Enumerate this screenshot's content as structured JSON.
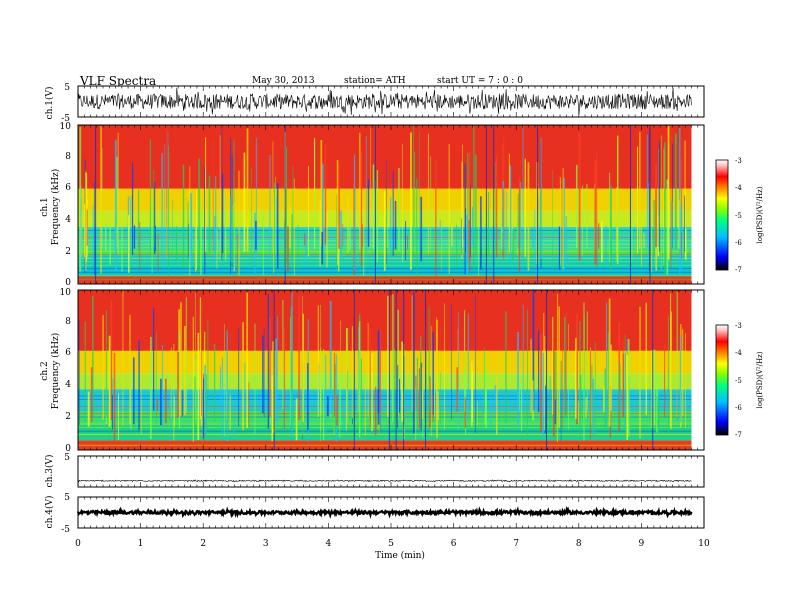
{
  "header": {
    "title": "VLF  Spectra",
    "date": "May 30, 2013",
    "station": "station= ATH",
    "start": "start  UT  =    7  : 0  : 0"
  },
  "chart_data": [
    {
      "type": "line",
      "name": "ch1-waveform",
      "ylabel": "ch.1(V)",
      "ylim": [
        -5,
        5
      ],
      "yticks": [
        "5",
        "-5"
      ],
      "xlim": [
        0,
        10
      ],
      "data_end_min": 9.8,
      "baseline_v": 0.0,
      "envelope_v": [
        -2.5,
        2.5
      ]
    },
    {
      "type": "heatmap",
      "name": "ch1-spectrogram",
      "ylabel_top": "ch.1",
      "ylabel": "Frequency  (kHz)",
      "ylim": [
        0,
        10
      ],
      "yticks": [
        "0",
        "2",
        "4",
        "6",
        "8",
        "10"
      ],
      "xlim": [
        0,
        10
      ],
      "data_end_min": 9.8,
      "colorbar": {
        "label": "log(PSD)(V²/Hz)",
        "range": [
          -7,
          -3
        ],
        "ticks": [
          "-3",
          "-4",
          "-5",
          "-6",
          "-7"
        ]
      },
      "bands": [
        {
          "fmin": 0.0,
          "fmax": 0.5,
          "color": "#e04020"
        },
        {
          "fmin": 0.5,
          "fmax": 1.8,
          "color": "#10c8c0"
        },
        {
          "fmin": 1.8,
          "fmax": 2.2,
          "color": "#40e060"
        },
        {
          "fmin": 2.2,
          "fmax": 3.6,
          "color": "#30d8b0"
        },
        {
          "fmin": 3.6,
          "fmax": 4.6,
          "color": "#c8e820"
        },
        {
          "fmin": 4.6,
          "fmax": 6.0,
          "color": "#f0d000"
        },
        {
          "fmin": 6.0,
          "fmax": 10.0,
          "color": "#e83020"
        }
      ]
    },
    {
      "type": "heatmap",
      "name": "ch2-spectrogram",
      "ylabel_top": "ch.2",
      "ylabel": "Frequency  (kHz)",
      "ylim": [
        0,
        10
      ],
      "yticks": [
        "0",
        "2",
        "4",
        "6",
        "8",
        "10"
      ],
      "xlim": [
        0,
        10
      ],
      "data_end_min": 9.8,
      "colorbar": {
        "label": "log(PSD)(V²/Hz)",
        "range": [
          -7,
          -3
        ],
        "ticks": [
          "-3",
          "-4",
          "-5",
          "-6",
          "-7"
        ]
      },
      "bands": [
        {
          "fmin": 0.0,
          "fmax": 0.6,
          "color": "#e04020"
        },
        {
          "fmin": 0.6,
          "fmax": 1.6,
          "color": "#20d080"
        },
        {
          "fmin": 1.6,
          "fmax": 2.4,
          "color": "#40e060"
        },
        {
          "fmin": 2.4,
          "fmax": 3.8,
          "color": "#20c8d0"
        },
        {
          "fmin": 3.8,
          "fmax": 4.8,
          "color": "#b0e830"
        },
        {
          "fmin": 4.8,
          "fmax": 6.2,
          "color": "#f0d000"
        },
        {
          "fmin": 6.2,
          "fmax": 10.0,
          "color": "#e83020"
        }
      ]
    },
    {
      "type": "line",
      "name": "ch3-waveform",
      "ylabel": "ch.3(V)",
      "ylim": [
        -5,
        5
      ],
      "yticks": [
        "5"
      ],
      "xlim": [
        0,
        10
      ],
      "data_end_min": 9.8,
      "baseline_v": -3.0,
      "envelope_v": [
        -3.2,
        -2.8
      ]
    },
    {
      "type": "line",
      "name": "ch4-waveform",
      "ylabel": "ch.4(V)",
      "ylim": [
        -5,
        5
      ],
      "yticks": [
        "5",
        "-5"
      ],
      "xlim": [
        0,
        10
      ],
      "data_end_min": 9.8,
      "baseline_v": 0.0,
      "envelope_v": [
        -0.5,
        0.5
      ]
    }
  ],
  "xaxis": {
    "label": "Time  (min)",
    "ticks": [
      "0",
      "1",
      "2",
      "3",
      "4",
      "5",
      "6",
      "7",
      "8",
      "9",
      "10"
    ]
  },
  "colors": {
    "colormap": [
      "#000000",
      "#0000ff",
      "#00c0ff",
      "#00ff80",
      "#80ff00",
      "#ffff00",
      "#ff8000",
      "#ff0000",
      "#ffc0c0",
      "#ffffff"
    ]
  }
}
